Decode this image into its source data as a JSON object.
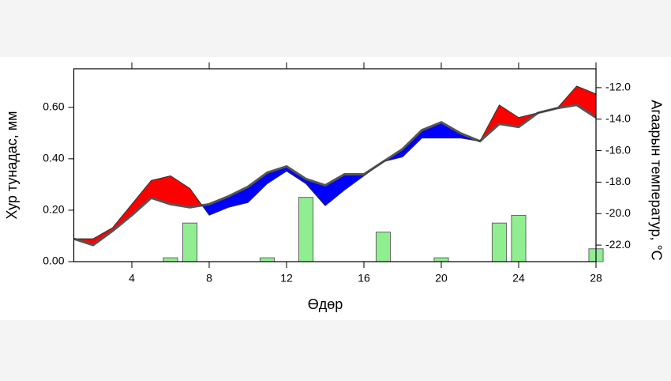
{
  "chart_data": {
    "type": "combo",
    "x": [
      1,
      2,
      3,
      4,
      5,
      6,
      7,
      8,
      9,
      10,
      11,
      12,
      13,
      14,
      15,
      16,
      17,
      18,
      19,
      20,
      21,
      22,
      23,
      24,
      25,
      26,
      27,
      28
    ],
    "xlim": [
      1,
      28
    ],
    "xticks": [
      4,
      8,
      12,
      16,
      20,
      24,
      28
    ],
    "xlabel": "Өдөр",
    "ylabel": "Хур тунадас, мм",
    "y2label": "Агаарын температур, °C",
    "ylim": [
      0,
      0.75
    ],
    "yticks": [
      {
        "value": 0,
        "label": "0.00"
      },
      {
        "value": 0.2,
        "label": "0.20"
      },
      {
        "value": 0.4,
        "label": "0.40"
      },
      {
        "value": 0.6,
        "label": "0.60"
      }
    ],
    "y2lim": [
      -23.05,
      -10.8
    ],
    "y2ticks": [
      {
        "value": -22,
        "label": "-22.0"
      },
      {
        "value": -20,
        "label": "-20.0"
      },
      {
        "value": -18,
        "label": "-18.0"
      },
      {
        "value": -16,
        "label": "-16.0"
      },
      {
        "value": -14,
        "label": "-14.0"
      },
      {
        "value": -12,
        "label": "-12.0"
      }
    ],
    "above_color": "#ff0000",
    "below_color": "#0000ff",
    "series": [
      {
        "type": "bar",
        "color": "#90ee90",
        "values": [
          0,
          0,
          0,
          0,
          0,
          0.015,
          0.15,
          0,
          0,
          0,
          0.015,
          0,
          0.25,
          0,
          0,
          0,
          0.115,
          0,
          0,
          0.015,
          0,
          0,
          0.15,
          0.18,
          0,
          0,
          0,
          0.05
        ]
      },
      {
        "type": "line",
        "axis": "y2",
        "color": "#555555",
        "values": [
          -21.6,
          -22.0,
          -21.1,
          -20.1,
          -19.0,
          -19.4,
          -19.6,
          -19.4,
          -18.9,
          -18.3,
          -17.4,
          -17.0,
          -17.8,
          -18.2,
          -17.5,
          -17.5,
          -16.7,
          -15.9,
          -14.7,
          -14.2,
          -14.9,
          -15.4,
          -14.3,
          -14.5,
          -13.6,
          -13.3,
          -13.1,
          -13.9
        ]
      },
      {
        "type": "line",
        "axis": "y2",
        "color": "#333333",
        "values": [
          -21.6,
          -21.6,
          -20.9,
          -19.4,
          -17.9,
          -17.6,
          -18.4,
          -20.1,
          -19.6,
          -19.3,
          -18.1,
          -17.3,
          -18.1,
          -19.5,
          -18.5,
          -17.6,
          -16.7,
          -16.4,
          -15.2,
          -15.2,
          -15.2,
          -15.4,
          -13.1,
          -13.9,
          -13.6,
          -13.3,
          -11.9,
          -12.4
        ]
      }
    ]
  }
}
